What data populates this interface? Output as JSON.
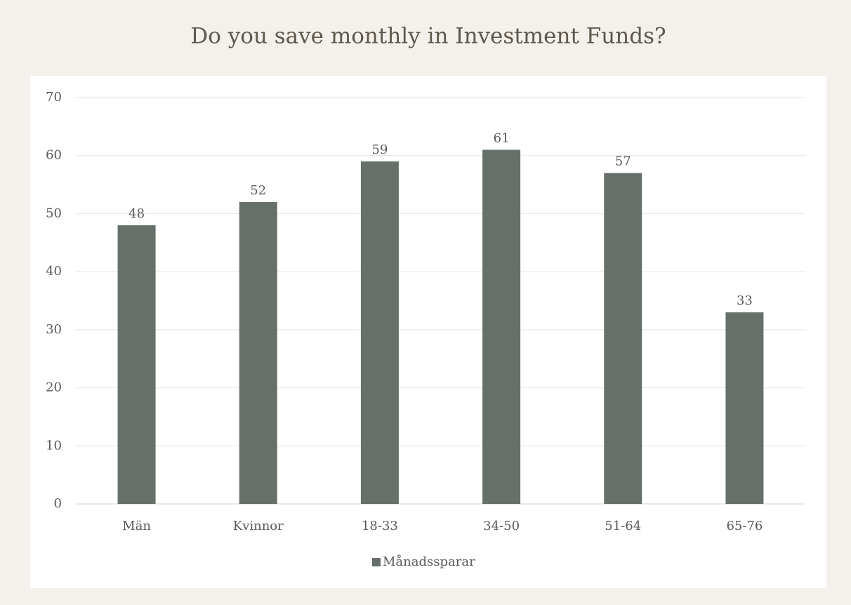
{
  "chart_data": {
    "type": "bar",
    "title": "Do you save monthly in Investment Funds?",
    "categories": [
      "Män",
      "Kvinnor",
      "18-33",
      "34-50",
      "51-64",
      "65-76"
    ],
    "series": [
      {
        "name": "Månadssparar",
        "color": "#667068",
        "values": [
          48,
          52,
          59,
          61,
          57,
          33
        ]
      }
    ],
    "ylim": [
      0,
      70
    ],
    "yticks": [
      0,
      10,
      20,
      30,
      40,
      50,
      60,
      70
    ],
    "grid": true,
    "legend": "bottom"
  }
}
